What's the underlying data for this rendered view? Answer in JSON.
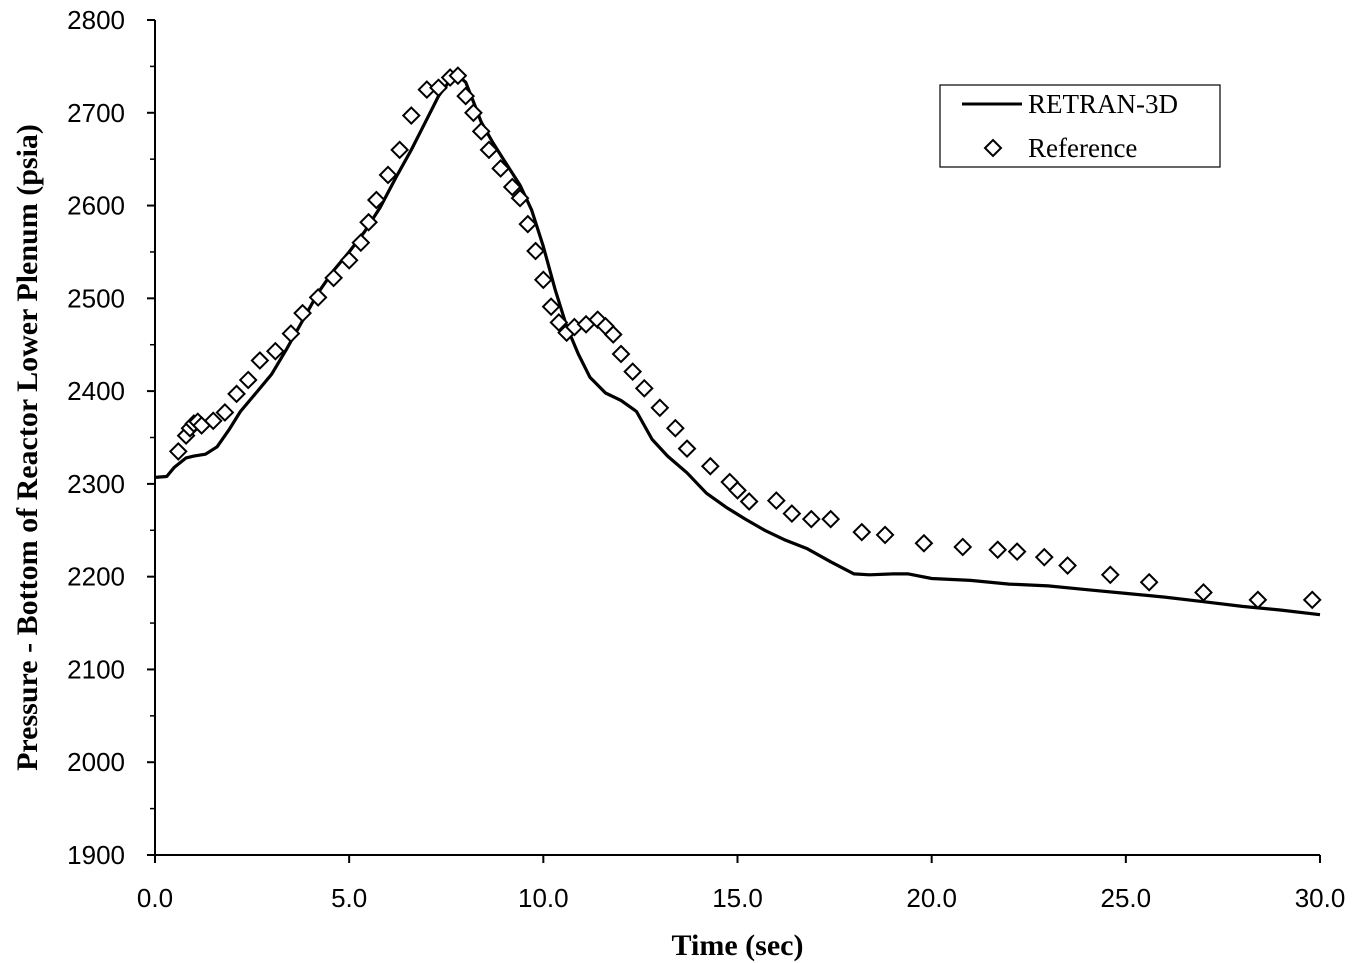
{
  "chart_data": {
    "type": "line",
    "title": "",
    "xlabel": "Time (sec)",
    "ylabel": "Pressure - Bottom of Reactor Lower Plenum (psia)",
    "xlim": [
      0,
      30
    ],
    "ylim": [
      1900,
      2800
    ],
    "x_ticks": [
      "0.0",
      "5.0",
      "10.0",
      "15.0",
      "20.0",
      "25.0",
      "30.0"
    ],
    "y_ticks": [
      "1900",
      "2000",
      "2100",
      "2200",
      "2300",
      "2400",
      "2500",
      "2600",
      "2700",
      "2800"
    ],
    "grid": false,
    "legend_position": "top-right",
    "colors": {
      "line": "#000000",
      "marker_edge": "#000000",
      "background": "#ffffff"
    },
    "series": [
      {
        "name": "RETRAN-3D",
        "style": "line",
        "x": [
          0.0,
          0.3,
          0.5,
          0.8,
          1.0,
          1.3,
          1.6,
          1.9,
          2.2,
          2.6,
          3.0,
          3.4,
          3.8,
          4.2,
          4.6,
          5.0,
          5.4,
          5.8,
          6.2,
          6.6,
          7.0,
          7.3,
          7.6,
          7.8,
          8.0,
          8.2,
          8.4,
          8.7,
          9.0,
          9.4,
          9.7,
          10.0,
          10.3,
          10.6,
          10.9,
          11.2,
          11.6,
          12.0,
          12.4,
          12.8,
          13.2,
          13.7,
          14.2,
          14.7,
          15.2,
          15.7,
          16.2,
          16.8,
          17.4,
          18.0,
          18.4,
          19.0,
          19.4,
          20.0,
          21.0,
          22.0,
          23.0,
          24.0,
          25.0,
          26.0,
          27.0,
          28.0,
          29.0,
          30.0
        ],
        "y": [
          2307,
          2308,
          2318,
          2328,
          2330,
          2332,
          2340,
          2358,
          2378,
          2398,
          2418,
          2446,
          2476,
          2506,
          2530,
          2550,
          2572,
          2598,
          2630,
          2660,
          2693,
          2718,
          2735,
          2740,
          2733,
          2712,
          2690,
          2668,
          2648,
          2622,
          2595,
          2556,
          2510,
          2470,
          2440,
          2415,
          2398,
          2390,
          2378,
          2348,
          2330,
          2312,
          2290,
          2275,
          2262,
          2250,
          2240,
          2230,
          2216,
          2203,
          2202,
          2203,
          2203,
          2198,
          2196,
          2192,
          2190,
          2186,
          2182,
          2178,
          2173,
          2168,
          2164,
          2159
        ]
      },
      {
        "name": "Reference",
        "style": "marker",
        "marker": "diamond",
        "x": [
          0.6,
          0.8,
          0.9,
          1.0,
          1.1,
          1.2,
          1.5,
          1.8,
          2.1,
          2.4,
          2.7,
          3.1,
          3.5,
          3.8,
          4.2,
          4.6,
          5.0,
          5.3,
          5.5,
          5.7,
          6.0,
          6.3,
          6.6,
          7.0,
          7.3,
          7.6,
          7.8,
          8.0,
          8.2,
          8.4,
          8.6,
          8.9,
          9.2,
          9.4,
          9.6,
          9.8,
          10.0,
          10.2,
          10.4,
          10.6,
          10.8,
          11.1,
          11.4,
          11.6,
          11.8,
          12.0,
          12.3,
          12.6,
          13.0,
          13.4,
          13.7,
          14.3,
          14.8,
          15.0,
          15.3,
          16.0,
          16.4,
          16.9,
          17.4,
          18.2,
          18.8,
          19.8,
          20.8,
          21.7,
          22.2,
          22.9,
          23.5,
          24.6,
          25.6,
          27.0,
          28.4,
          29.8
        ],
        "y": [
          2335,
          2352,
          2360,
          2365,
          2367,
          2363,
          2368,
          2377,
          2397,
          2412,
          2433,
          2443,
          2462,
          2484,
          2501,
          2522,
          2541,
          2560,
          2582,
          2606,
          2633,
          2660,
          2697,
          2725,
          2727,
          2738,
          2740,
          2718,
          2700,
          2680,
          2660,
          2640,
          2620,
          2608,
          2580,
          2551,
          2520,
          2491,
          2474,
          2463,
          2469,
          2472,
          2477,
          2470,
          2461,
          2440,
          2421,
          2403,
          2382,
          2360,
          2338,
          2319,
          2302,
          2293,
          2281,
          2282,
          2268,
          2262,
          2262,
          2248,
          2245,
          2236,
          2232,
          2229,
          2227,
          2221,
          2212,
          2202,
          2194,
          2183,
          2175,
          2175
        ]
      }
    ]
  }
}
